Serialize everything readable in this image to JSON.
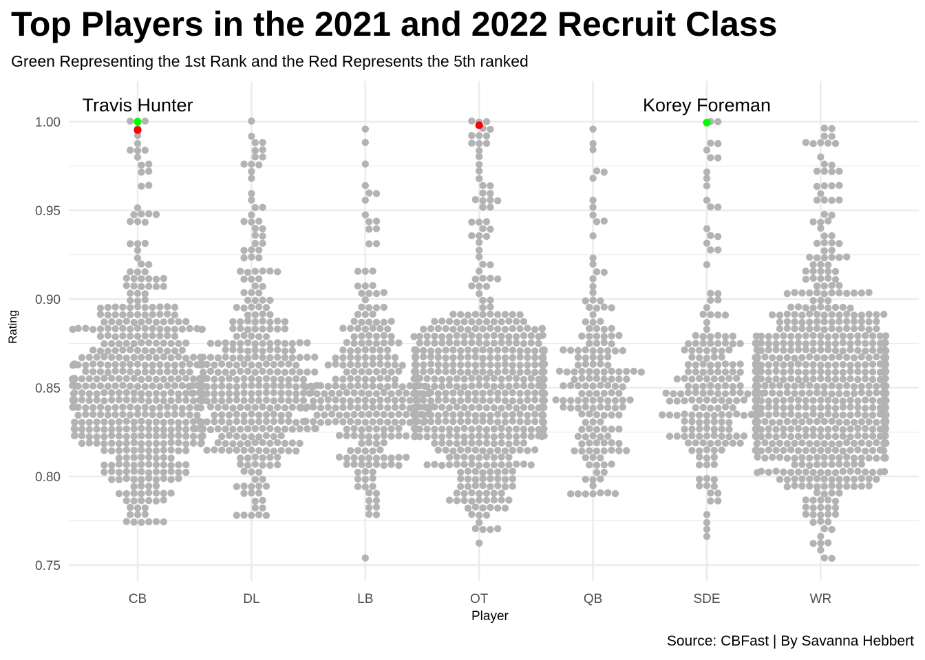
{
  "title": "Top Players in the 2021 and 2022 Recruit Class",
  "subtitle": "Green Representing the 1st Rank and the Red Represents the 5th ranked",
  "caption": "Source: CBFast | By Savanna Hebbert",
  "colors": {
    "default": "#b3b3b3",
    "rank1": "#00ff00",
    "rank5": "#ff0000",
    "grid": "#ebebeb"
  },
  "chart_data": {
    "type": "scatter",
    "subtype": "beeswarm",
    "xlabel": "Player",
    "ylabel": "Rating",
    "categories": [
      "CB",
      "DL",
      "LB",
      "OT",
      "QB",
      "SDE",
      "WR"
    ],
    "ylim": [
      0.745,
      1.005
    ],
    "yticks": [
      0.75,
      0.8,
      0.85,
      0.9,
      0.95,
      1.0
    ],
    "ytick_labels": [
      "0.75",
      "0.80",
      "0.85",
      "0.90",
      "0.95",
      "1.00"
    ],
    "grid": true,
    "legend": "none",
    "distributions": [
      {
        "category": "CB",
        "count": 520,
        "min": 0.7733,
        "max": 1.0
      },
      {
        "category": "DL",
        "count": 340,
        "min": 0.779,
        "max": 1.0
      },
      {
        "category": "LB",
        "count": 270,
        "min": 0.756,
        "max": 0.995
      },
      {
        "category": "OT",
        "count": 560,
        "min": 0.763,
        "max": 1.0
      },
      {
        "category": "QB",
        "count": 170,
        "min": 0.79,
        "max": 0.995
      },
      {
        "category": "SDE",
        "count": 190,
        "min": 0.768,
        "max": 1.0
      },
      {
        "category": "WR",
        "count": 780,
        "min": 0.753,
        "max": 0.998
      }
    ],
    "highlights": [
      {
        "category": "CB",
        "value": 1.0,
        "rank": 1,
        "color": "#00ff00"
      },
      {
        "category": "CB",
        "value": 0.9953,
        "rank": 5,
        "color": "#ff0000"
      },
      {
        "category": "OT",
        "value": 0.998,
        "rank": 5,
        "color": "#ff0000"
      },
      {
        "category": "SDE",
        "value": 0.9995,
        "rank": 1,
        "color": "#00ff00"
      }
    ],
    "annotations": [
      {
        "text": "Travis Hunter",
        "category": "CB",
        "value": 1.009
      },
      {
        "text": "Korey Foreman",
        "category": "SDE",
        "value": 1.009
      }
    ]
  }
}
